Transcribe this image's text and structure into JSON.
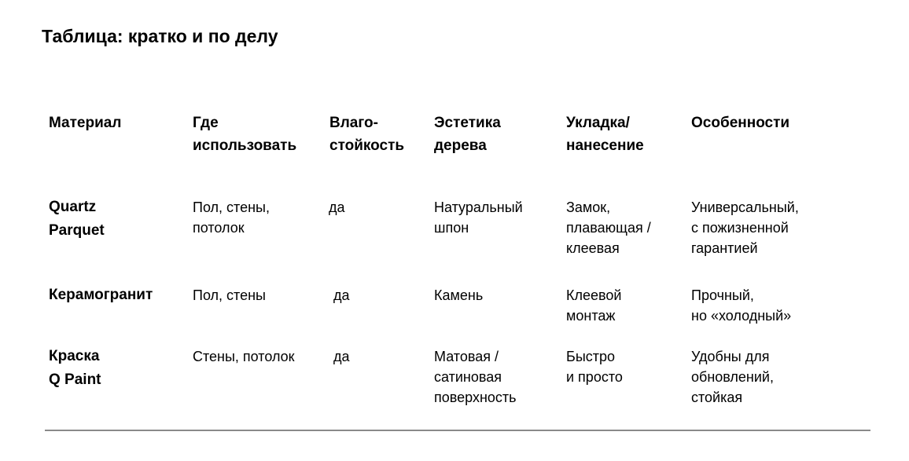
{
  "title": "Таблица: кратко и по делу",
  "table": {
    "headers": [
      "Материал",
      "Где\nиспользовать",
      "Влаго-\nстойкость",
      "Эстетика\nдерева",
      "Укладка/\nнанесение",
      "Особенности"
    ],
    "rows": [
      [
        "Quartz\nParquet",
        "Пол, стены,\nпотолок",
        "да",
        "Натуральный\nшпон",
        "Замок,\nплавающая /\nклеевая",
        "Универсальный,\nс пожизненной\nгарантией"
      ],
      [
        "Керамогранит",
        "Пол, стены",
        "да",
        "Камень",
        "Клеевой\nмонтаж",
        "Прочный,\nно «холодный»"
      ],
      [
        "Краска\nQ Paint",
        "Стены, потолок",
        "да",
        "Матовая /\nсатиновая\nповерхность",
        "Быстро\nи просто",
        "Удобны для\nобновлений,\nстойкая"
      ]
    ]
  }
}
